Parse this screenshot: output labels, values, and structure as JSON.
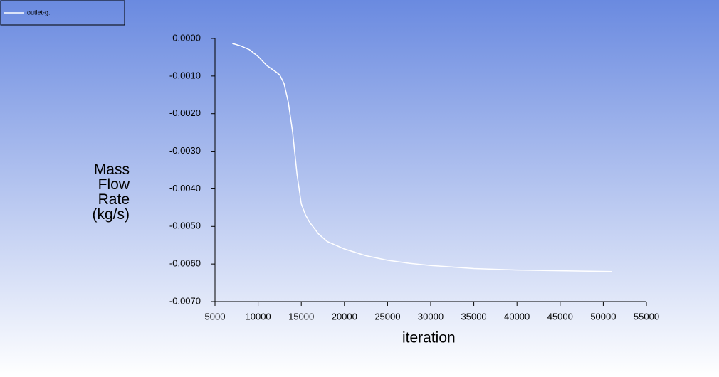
{
  "chart_data": {
    "type": "line",
    "x_label": "iteration",
    "y_label": "Mass Flow Rate (kg/s)",
    "x": [
      7000,
      8000,
      9000,
      10000,
      11000,
      12000,
      12500,
      13000,
      13500,
      14000,
      14500,
      15000,
      15500,
      16000,
      17000,
      18000,
      20000,
      22500,
      25000,
      27500,
      30000,
      35000,
      40000,
      45000,
      51000
    ],
    "series": [
      {
        "name": "outlet-g.",
        "color": "#ffffff",
        "values": [
          -0.00013,
          -0.0002,
          -0.0003,
          -0.00048,
          -0.00072,
          -0.00088,
          -0.00097,
          -0.0012,
          -0.0017,
          -0.0025,
          -0.0036,
          -0.0044,
          -0.0047,
          -0.0049,
          -0.0052,
          -0.0054,
          -0.0056,
          -0.00578,
          -0.0059,
          -0.00598,
          -0.00604,
          -0.00612,
          -0.00616,
          -0.00618,
          -0.0062
        ]
      }
    ],
    "xlim": [
      5000,
      55000
    ],
    "xticks": [
      5000,
      10000,
      15000,
      20000,
      25000,
      30000,
      35000,
      40000,
      45000,
      50000,
      55000
    ],
    "ylim": [
      -0.007,
      0
    ],
    "yticks": [
      {
        "value": 0,
        "label": "0.0000"
      },
      {
        "value": -0.001,
        "label": "-0.0010"
      },
      {
        "value": -0.002,
        "label": "-0.0020"
      },
      {
        "value": -0.003,
        "label": "-0.0030"
      },
      {
        "value": -0.004,
        "label": "-0.0040"
      },
      {
        "value": -0.005,
        "label": "-0.0050"
      },
      {
        "value": -0.006,
        "label": "-0.0060"
      },
      {
        "value": -0.007,
        "label": "-0.0070"
      }
    ],
    "legend": "top-left"
  }
}
